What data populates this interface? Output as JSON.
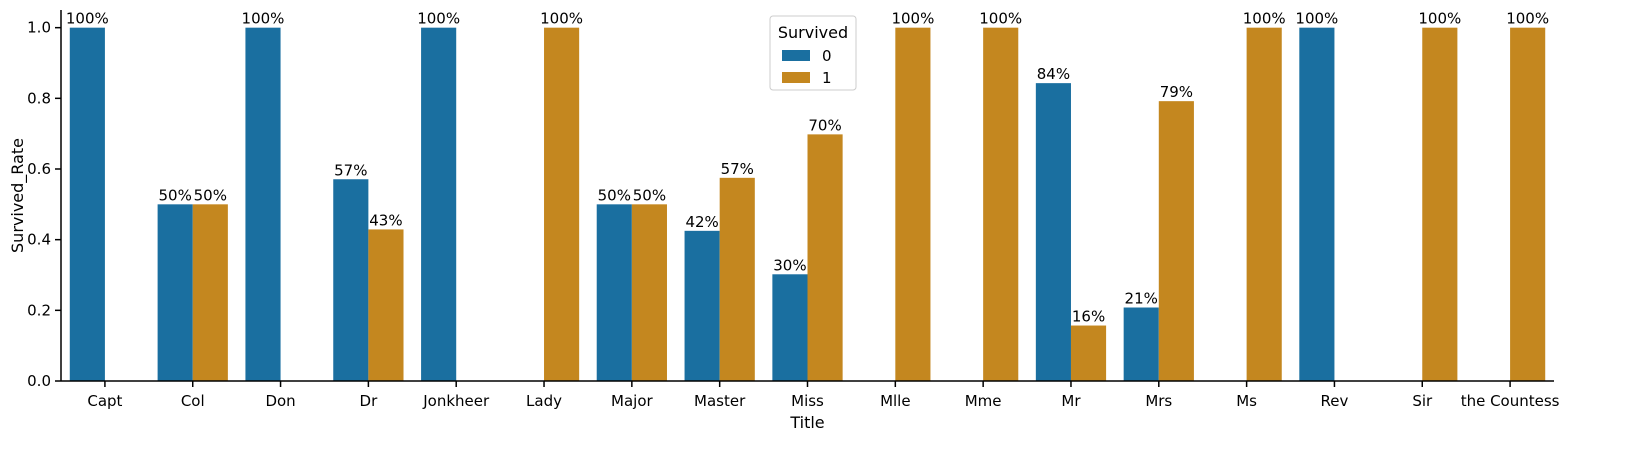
{
  "chart_data": {
    "type": "bar",
    "xlabel": "Title",
    "ylabel": "Survived_Rate",
    "ylim": [
      0,
      1.05
    ],
    "yticks": [
      0.0,
      0.2,
      0.4,
      0.6,
      0.8,
      1.0
    ],
    "ytick_labels": [
      "0.0",
      "0.2",
      "0.4",
      "0.6",
      "0.8",
      "1.0"
    ],
    "grid": false,
    "categories": [
      "Capt",
      "Col",
      "Don",
      "Dr",
      "Jonkheer",
      "Lady",
      "Major",
      "Master",
      "Miss",
      "Mlle",
      "Mme",
      "Mr",
      "Mrs",
      "Ms",
      "Rev",
      "Sir",
      "the Countess"
    ],
    "legend": {
      "title": "Survived",
      "placement": "upper-center"
    },
    "series": [
      {
        "name": "0",
        "color": "#1a6fa0",
        "values": [
          1.0,
          0.5,
          1.0,
          0.571,
          null,
          null,
          0.5,
          0.425,
          0.302,
          null,
          null,
          0.843,
          0.208,
          null,
          1.0,
          null,
          null
        ],
        "labels": [
          "100%",
          "50%",
          "100%",
          "57%",
          "",
          "",
          "50%",
          "42%",
          "30%",
          "",
          "",
          "84%",
          "21%",
          "",
          "100%",
          "",
          ""
        ]
      },
      {
        "name": "1",
        "color": "#c4871f",
        "values": [
          null,
          0.5,
          null,
          0.429,
          null,
          1.0,
          0.5,
          0.575,
          0.698,
          1.0,
          1.0,
          0.157,
          0.792,
          1.0,
          null,
          1.0,
          1.0
        ],
        "labels": [
          "",
          "50%",
          "",
          "43%",
          "",
          "100%",
          "50%",
          "57%",
          "70%",
          "100%",
          "100%",
          "16%",
          "79%",
          "100%",
          "",
          "100%",
          "100%"
        ]
      }
    ],
    "jonkheer_series0": {
      "value": 1.0,
      "label": "100%"
    }
  }
}
